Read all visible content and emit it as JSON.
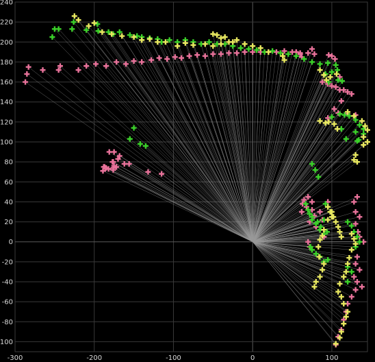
{
  "chart_data": {
    "type": "scatter",
    "title": "",
    "xlabel": "",
    "ylabel": "",
    "xlim": [
      -300,
      145
    ],
    "ylim": [
      -110,
      240
    ],
    "xticks": [
      -300,
      -200,
      -100,
      0,
      100
    ],
    "yticks": [
      -100,
      -80,
      -60,
      -40,
      -20,
      0,
      20,
      40,
      60,
      80,
      100,
      120,
      140,
      160,
      180,
      200,
      220,
      240
    ],
    "grid": true,
    "background": "#000000",
    "colors": {
      "grid": "#3a3a3a",
      "rays": "#9a9a9a",
      "axis_zero": "#5a5a5a"
    },
    "rays": {
      "origin": [
        0,
        0
      ],
      "from_series": [
        "pink",
        "green",
        "yellow"
      ]
    },
    "series": [
      {
        "key": "pink",
        "color": "#e8729a",
        "points": [
          [
            -287,
            160
          ],
          [
            -285,
            168
          ],
          [
            -283,
            175
          ],
          [
            -265,
            172
          ],
          [
            -245,
            172
          ],
          [
            -243,
            176
          ],
          [
            -220,
            172
          ],
          [
            -210,
            176
          ],
          [
            -198,
            178
          ],
          [
            -185,
            176
          ],
          [
            -172,
            180
          ],
          [
            -160,
            178
          ],
          [
            -150,
            181
          ],
          [
            -140,
            180
          ],
          [
            -128,
            182
          ],
          [
            -118,
            184
          ],
          [
            -108,
            183
          ],
          [
            -98,
            185
          ],
          [
            -90,
            184
          ],
          [
            -80,
            186
          ],
          [
            -70,
            187
          ],
          [
            -60,
            186
          ],
          [
            -50,
            188
          ],
          [
            -40,
            188
          ],
          [
            -30,
            189
          ],
          [
            -20,
            189
          ],
          [
            -10,
            190
          ],
          [
            0,
            190
          ],
          [
            10,
            190
          ],
          [
            20,
            190
          ],
          [
            30,
            190
          ],
          [
            40,
            191
          ],
          [
            50,
            190
          ],
          [
            60,
            189
          ],
          [
            70,
            189
          ],
          [
            75,
            193
          ],
          [
            78,
            188
          ],
          [
            60,
            188
          ],
          [
            55,
            190
          ],
          [
            62,
            185
          ],
          [
            100,
            186
          ],
          [
            104,
            183
          ],
          [
            96,
            187
          ],
          [
            110,
            165
          ],
          [
            88,
            160
          ],
          [
            95,
            158
          ],
          [
            100,
            156
          ],
          [
            105,
            155
          ],
          [
            110,
            152
          ],
          [
            115,
            152
          ],
          [
            120,
            150
          ],
          [
            112,
            141
          ],
          [
            125,
            148
          ],
          [
            103,
            133
          ],
          [
            120,
            128
          ],
          [
            130,
            127
          ],
          [
            108,
            129
          ],
          [
            95,
            124
          ],
          [
            -170,
            83
          ],
          [
            -172,
            75
          ],
          [
            -182,
            73
          ],
          [
            -162,
            78
          ],
          [
            -156,
            78
          ],
          [
            -132,
            70
          ],
          [
            -115,
            68
          ],
          [
            -175,
            90
          ],
          [
            -168,
            86
          ],
          [
            -181,
            90
          ],
          [
            -187,
            75
          ],
          [
            -176,
            74
          ],
          [
            -176,
            72
          ],
          [
            -177,
            80
          ],
          [
            -185,
            74
          ],
          [
            -188,
            75
          ],
          [
            -186,
            73
          ],
          [
            -189,
            71
          ],
          [
            -175,
            76
          ],
          [
            -176,
            80
          ],
          [
            70,
            45
          ],
          [
            65,
            42
          ],
          [
            63,
            38
          ],
          [
            75,
            32
          ],
          [
            72,
            20
          ],
          [
            80,
            15
          ],
          [
            85,
            12
          ],
          [
            90,
            5
          ],
          [
            75,
            40
          ],
          [
            68,
            35
          ],
          [
            62,
            30
          ],
          [
            95,
            40
          ],
          [
            78,
            26
          ],
          [
            85,
            30
          ],
          [
            88,
            22
          ],
          [
            70,
            0
          ],
          [
            72,
            -5
          ],
          [
            130,
            30
          ],
          [
            135,
            25
          ],
          [
            128,
            40
          ],
          [
            132,
            45
          ],
          [
            130,
            18
          ],
          [
            133,
            10
          ],
          [
            135,
            5
          ],
          [
            140,
            0
          ],
          [
            132,
            -15
          ],
          [
            130,
            -22
          ],
          [
            135,
            -28
          ],
          [
            128,
            -35
          ],
          [
            132,
            -40
          ],
          [
            138,
            -45
          ],
          [
            130,
            -48
          ],
          [
            125,
            -55
          ],
          [
            120,
            -62
          ],
          [
            118,
            -70
          ],
          [
            115,
            -78
          ],
          [
            112,
            -88
          ],
          [
            108,
            -95
          ],
          [
            105,
            -103
          ]
        ]
      },
      {
        "key": "green",
        "color": "#3bd129",
        "points": [
          [
            -250,
            213
          ],
          [
            -253,
            205
          ],
          [
            -245,
            213
          ],
          [
            -228,
            213
          ],
          [
            -226,
            220
          ],
          [
            -210,
            212
          ],
          [
            -196,
            218
          ],
          [
            -195,
            211
          ],
          [
            -182,
            210
          ],
          [
            -176,
            208
          ],
          [
            -168,
            210
          ],
          [
            -155,
            207
          ],
          [
            -146,
            206
          ],
          [
            -140,
            205
          ],
          [
            -130,
            204
          ],
          [
            -120,
            203
          ],
          [
            -115,
            200
          ],
          [
            -105,
            202
          ],
          [
            -95,
            200
          ],
          [
            -85,
            202
          ],
          [
            -75,
            200
          ],
          [
            -65,
            198
          ],
          [
            -55,
            200
          ],
          [
            -45,
            198
          ],
          [
            -35,
            198
          ],
          [
            -25,
            196
          ],
          [
            -15,
            194
          ],
          [
            -5,
            193
          ],
          [
            5,
            192
          ],
          [
            15,
            190
          ],
          [
            25,
            191
          ],
          [
            35,
            189
          ],
          [
            45,
            188
          ],
          [
            55,
            186
          ],
          [
            65,
            183
          ],
          [
            75,
            180
          ],
          [
            85,
            178
          ],
          [
            95,
            179
          ],
          [
            105,
            177
          ],
          [
            92,
            168
          ],
          [
            100,
            170
          ],
          [
            107,
            172
          ],
          [
            96,
            160
          ],
          [
            108,
            162
          ],
          [
            113,
            161
          ],
          [
            100,
            125
          ],
          [
            110,
            128
          ],
          [
            116,
            127
          ],
          [
            122,
            126
          ],
          [
            130,
            122
          ],
          [
            135,
            117
          ],
          [
            140,
            113
          ],
          [
            112,
            113
          ],
          [
            130,
            110
          ],
          [
            118,
            103
          ],
          [
            134,
            102
          ],
          [
            140,
            108
          ],
          [
            132,
            101
          ],
          [
            -150,
            114
          ],
          [
            -155,
            103
          ],
          [
            -142,
            98
          ],
          [
            -135,
            96
          ],
          [
            75,
            78
          ],
          [
            79,
            72
          ],
          [
            83,
            65
          ],
          [
            67,
            38
          ],
          [
            70,
            32
          ],
          [
            72,
            28
          ],
          [
            75,
            22
          ],
          [
            80,
            18
          ],
          [
            85,
            12
          ],
          [
            90,
            8
          ],
          [
            94,
            10
          ],
          [
            75,
            25
          ],
          [
            82,
            20
          ],
          [
            86,
            15
          ],
          [
            90,
            22
          ],
          [
            92,
            38
          ],
          [
            95,
            35
          ],
          [
            98,
            30
          ],
          [
            73,
            -5
          ],
          [
            75,
            -8
          ],
          [
            80,
            -12
          ],
          [
            85,
            -15
          ],
          [
            90,
            -20
          ],
          [
            95,
            -18
          ],
          [
            120,
            20
          ],
          [
            125,
            16
          ],
          [
            128,
            10
          ],
          [
            132,
            5
          ],
          [
            135,
            0
          ],
          [
            130,
            -5
          ],
          [
            120,
            -25
          ],
          [
            125,
            -30
          ],
          [
            120,
            -40
          ]
        ]
      },
      {
        "key": "yellow",
        "color": "#e8e860",
        "points": [
          [
            -225,
            226
          ],
          [
            -220,
            222
          ],
          [
            -207,
            216
          ],
          [
            -200,
            219
          ],
          [
            -190,
            210
          ],
          [
            -178,
            208
          ],
          [
            -165,
            206
          ],
          [
            -150,
            205
          ],
          [
            -140,
            202
          ],
          [
            -130,
            203
          ],
          [
            -120,
            200
          ],
          [
            -110,
            200
          ],
          [
            -95,
            196
          ],
          [
            -85,
            199
          ],
          [
            -75,
            197
          ],
          [
            -60,
            198
          ],
          [
            -50,
            196
          ],
          [
            -40,
            198
          ],
          [
            -30,
            200
          ],
          [
            -20,
            202
          ],
          [
            -10,
            198
          ],
          [
            0,
            196
          ],
          [
            10,
            194
          ],
          [
            20,
            190
          ],
          [
            -40,
            204
          ],
          [
            -50,
            208
          ],
          [
            -45,
            207
          ],
          [
            -35,
            205
          ],
          [
            -25,
            200
          ],
          [
            38,
            186
          ],
          [
            40,
            182
          ],
          [
            85,
            172
          ],
          [
            90,
            167
          ],
          [
            98,
            165
          ],
          [
            93,
            162
          ],
          [
            106,
            168
          ],
          [
            85,
            121
          ],
          [
            92,
            119
          ],
          [
            96,
            120
          ],
          [
            103,
            118
          ],
          [
            107,
            113
          ],
          [
            120,
            130
          ],
          [
            128,
            126
          ],
          [
            138,
            121
          ],
          [
            142,
            116
          ],
          [
            145,
            112
          ],
          [
            140,
            105
          ],
          [
            145,
            100
          ],
          [
            140,
            97
          ],
          [
            130,
            87
          ],
          [
            128,
            82
          ],
          [
            132,
            80
          ],
          [
            95,
            35
          ],
          [
            98,
            30
          ],
          [
            100,
            25
          ],
          [
            95,
            22
          ],
          [
            90,
            12
          ],
          [
            88,
            6
          ],
          [
            85,
            2
          ],
          [
            83,
            -5
          ],
          [
            84,
            -15
          ],
          [
            90,
            -22
          ],
          [
            88,
            -28
          ],
          [
            85,
            -35
          ],
          [
            80,
            -40
          ],
          [
            78,
            -45
          ],
          [
            100,
            30
          ],
          [
            102,
            25
          ],
          [
            105,
            20
          ],
          [
            108,
            15
          ],
          [
            110,
            10
          ],
          [
            112,
            5
          ],
          [
            125,
            8
          ],
          [
            128,
            3
          ],
          [
            130,
            -2
          ],
          [
            125,
            -8
          ],
          [
            122,
            -16
          ],
          [
            120,
            -22
          ],
          [
            118,
            -30
          ],
          [
            115,
            -35
          ],
          [
            110,
            -42
          ],
          [
            108,
            -50
          ],
          [
            112,
            -55
          ],
          [
            115,
            -62
          ],
          [
            120,
            -70
          ],
          [
            118,
            -75
          ],
          [
            115,
            -82
          ],
          [
            112,
            -90
          ],
          [
            110,
            -96
          ],
          [
            105,
            -102
          ]
        ]
      }
    ]
  }
}
